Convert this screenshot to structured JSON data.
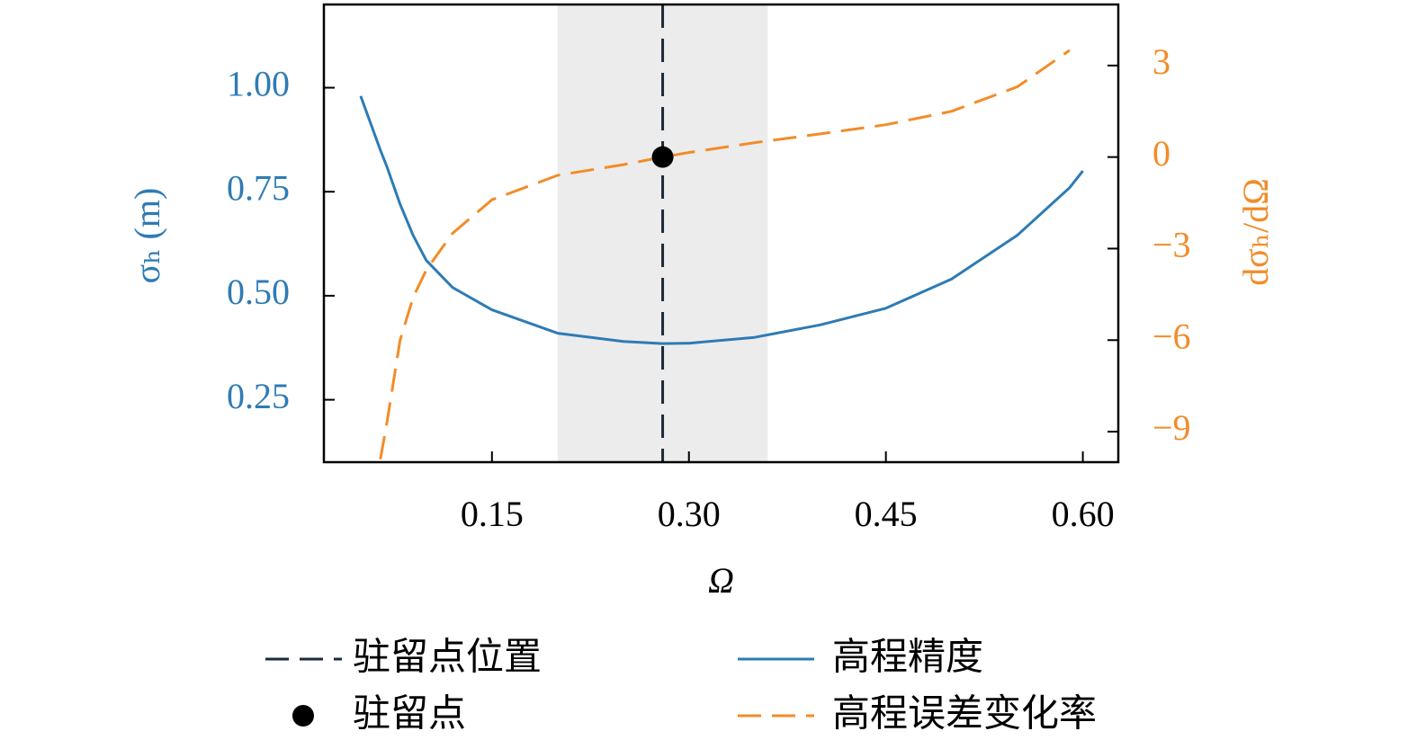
{
  "chart_data": {
    "type": "line",
    "xlabel": "Ω",
    "ylabel": "σₕ (m)",
    "y2label": "dσₕ/dΩ",
    "x": [
      0.05,
      0.065,
      0.07,
      0.08,
      0.09,
      0.1,
      0.12,
      0.15,
      0.2,
      0.25,
      0.28,
      0.3,
      0.35,
      0.4,
      0.45,
      0.5,
      0.55,
      0.59,
      0.6
    ],
    "series": [
      {
        "name": "高程精度",
        "color": "#2e7bb4",
        "axis": "y",
        "dashed": false,
        "values": [
          0.98,
          0.85,
          0.81,
          0.72,
          0.645,
          0.585,
          0.52,
          0.466,
          0.41,
          0.39,
          0.385,
          0.386,
          0.4,
          0.43,
          0.47,
          0.54,
          0.645,
          0.76,
          0.8
        ]
      },
      {
        "name": "高程误差变化率",
        "color": "#f28c28",
        "axis": "y2",
        "dashed": true,
        "values": [
          null,
          -9.9,
          -8.7,
          -6.0,
          -4.6,
          -3.7,
          -2.5,
          -1.4,
          -0.6,
          -0.25,
          0,
          0.15,
          0.47,
          0.76,
          1.06,
          1.5,
          2.3,
          3.5,
          null
        ]
      }
    ],
    "span": {
      "x": [
        0.2,
        0.36
      ],
      "color": "#ececec"
    },
    "vline": {
      "name": "驻留点位置",
      "x": 0.28,
      "color": "#1c2a3a"
    },
    "marker": {
      "name": "驻留点",
      "x": 0.28,
      "y": 0,
      "axis": "y2",
      "color": "#000000"
    },
    "xlim": [
      0.022,
      0.627
    ],
    "xticks": [
      {
        "value": 0.15,
        "label": "0.15"
      },
      {
        "value": 0.3,
        "label": "0.30"
      },
      {
        "value": 0.45,
        "label": "0.45"
      },
      {
        "value": 0.6,
        "label": "0.60"
      }
    ],
    "ylim": [
      0.1,
      1.2
    ],
    "yticks": [
      {
        "value": 0.25,
        "label": "0.25"
      },
      {
        "value": 0.5,
        "label": "0.50"
      },
      {
        "value": 0.75,
        "label": "0.75"
      },
      {
        "value": 1.0,
        "label": "1.00"
      }
    ],
    "y2lim": [
      -10,
      5
    ],
    "y2ticks": [
      {
        "value": -9,
        "label": "−9"
      },
      {
        "value": -6,
        "label": "−6"
      },
      {
        "value": -3,
        "label": "−3"
      },
      0,
      3
    ],
    "grid": false
  }
}
